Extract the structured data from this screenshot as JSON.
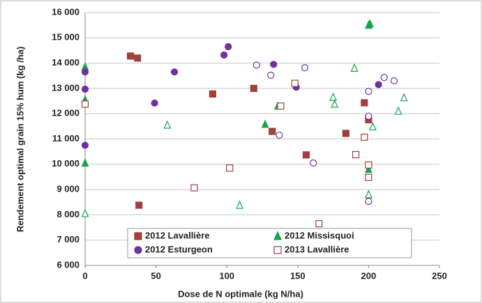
{
  "chart_data": {
    "type": "scatter",
    "xlabel": "Dose de  N optimale (kg N/ha)",
    "ylabel": "Rendement optimal grain 15% hum (kg /ha)",
    "xlim": [
      0,
      250
    ],
    "xticks": [
      0,
      50,
      100,
      150,
      200,
      250
    ],
    "ylim": [
      6000,
      16000
    ],
    "yticks": [
      {
        "value": 6000,
        "label": "6 000"
      },
      {
        "value": 7000,
        "label": "7 000"
      },
      {
        "value": 8000,
        "label": "8 000"
      },
      {
        "value": 9000,
        "label": "9 000"
      },
      {
        "value": 10000,
        "label": "10 000"
      },
      {
        "value": 11000,
        "label": "11 000"
      },
      {
        "value": 12000,
        "label": "12 000"
      },
      {
        "value": 13000,
        "label": "13 000"
      },
      {
        "value": 14000,
        "label": "14 000"
      },
      {
        "value": 15000,
        "label": "15 000"
      },
      {
        "value": 16000,
        "label": "16 000"
      }
    ],
    "grid": true,
    "series": [
      {
        "name": "2012 Lavallière",
        "color": "#a0403c",
        "marker": "square",
        "filled": true,
        "x": [
          32,
          37,
          38,
          90,
          119,
          132,
          156,
          184,
          197,
          200
        ],
        "values": [
          14280,
          14200,
          8380,
          12780,
          13000,
          11300,
          10370,
          11220,
          12430,
          11760
        ]
      },
      {
        "name": "2012 Missisquoi",
        "color": "#1aa34a",
        "marker": "triangle",
        "filled": true,
        "x": [
          0,
          0,
          0,
          127,
          136,
          200,
          201,
          200
        ],
        "values": [
          13850,
          12550,
          10050,
          11580,
          12300,
          15500,
          15550,
          9800
        ]
      },
      {
        "name": "2012 Esturgeon",
        "color": "#7030a0",
        "marker": "circle",
        "filled": true,
        "x": [
          0,
          0,
          0,
          49,
          63,
          98,
          101,
          133,
          149,
          207
        ],
        "values": [
          13650,
          12970,
          10750,
          12420,
          13650,
          14320,
          14650,
          13950,
          13050,
          13150
        ]
      },
      {
        "name": "2013 Lavallière",
        "color": "#a0403c",
        "marker": "square",
        "filled": false,
        "x": [
          0,
          77,
          102,
          138,
          148,
          165,
          191,
          197,
          200,
          200
        ],
        "values": [
          12380,
          9070,
          9850,
          12300,
          13200,
          7650,
          10380,
          11070,
          9970,
          9480
        ]
      },
      {
        "color": "#1aa34a",
        "marker": "triangle",
        "filled": false,
        "x": [
          0,
          58,
          109,
          175,
          176,
          190,
          200,
          203,
          221,
          225
        ],
        "values": [
          8050,
          11550,
          8380,
          12650,
          12380,
          13800,
          8800,
          11480,
          12100,
          12630
        ]
      },
      {
        "color": "#7030a0",
        "marker": "circle",
        "filled": false,
        "x": [
          121,
          131,
          137,
          155,
          161,
          200,
          200,
          200,
          211,
          218
        ],
        "values": [
          13920,
          13520,
          11150,
          13820,
          10050,
          12880,
          11900,
          8530,
          13430,
          13300
        ]
      }
    ]
  }
}
